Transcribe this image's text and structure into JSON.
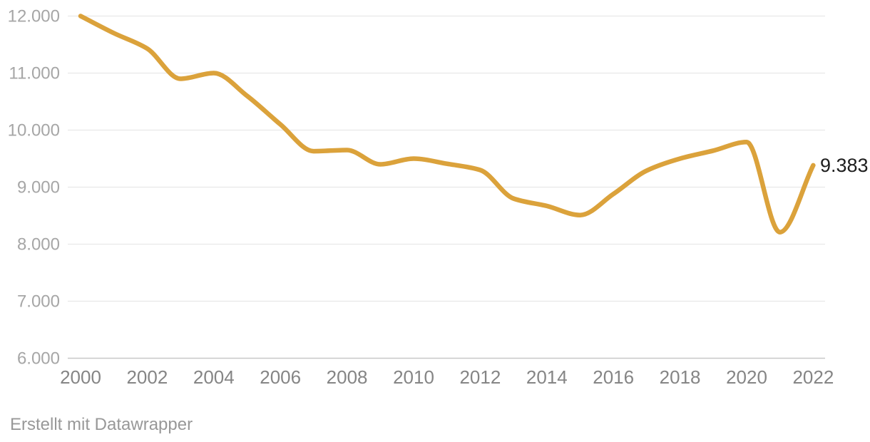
{
  "chart_data": {
    "type": "line",
    "title": "",
    "xlabel": "",
    "ylabel": "",
    "legend": "none",
    "grid": "horizontal",
    "xlim": [
      2000,
      2022
    ],
    "ylim": [
      6000,
      12000
    ],
    "x": [
      2000,
      2001,
      2002,
      2003,
      2004,
      2005,
      2006,
      2007,
      2008,
      2009,
      2010,
      2011,
      2012,
      2013,
      2014,
      2015,
      2016,
      2017,
      2018,
      2019,
      2020,
      2021,
      2022
    ],
    "values": [
      12000,
      11700,
      11430,
      10900,
      11000,
      10600,
      10100,
      9630,
      9650,
      9400,
      9500,
      9410,
      9300,
      8800,
      8670,
      8510,
      8880,
      9290,
      9500,
      9640,
      9790,
      8210,
      9383
    ],
    "x_tick_years": [
      2000,
      2002,
      2004,
      2006,
      2008,
      2010,
      2012,
      2014,
      2016,
      2018,
      2020,
      2022
    ],
    "x_tick_labels": [
      "2000",
      "2002",
      "2004",
      "2006",
      "2008",
      "2010",
      "2012",
      "2014",
      "2016",
      "2018",
      "2020",
      "2022"
    ],
    "y_ticks": [
      6000,
      7000,
      8000,
      9000,
      10000,
      11000,
      12000
    ],
    "y_tick_labels": [
      "6.000",
      "7.000",
      "8.000",
      "9.000",
      "10.000",
      "11.000",
      "12.000"
    ],
    "end_label": "9.383",
    "number_format": "german-thousands-dot"
  },
  "colors": {
    "line": "#DBA23B",
    "grid": "#E8E8E8",
    "baseline": "#C8C8C8",
    "y_tick_text": "#A6A6A6",
    "x_tick_text": "#858585",
    "end_label_text": "#1D1D1D",
    "attribution_text": "#989898",
    "background": "#FFFFFF"
  },
  "attribution": {
    "text": "Erstellt mit Datawrapper"
  }
}
